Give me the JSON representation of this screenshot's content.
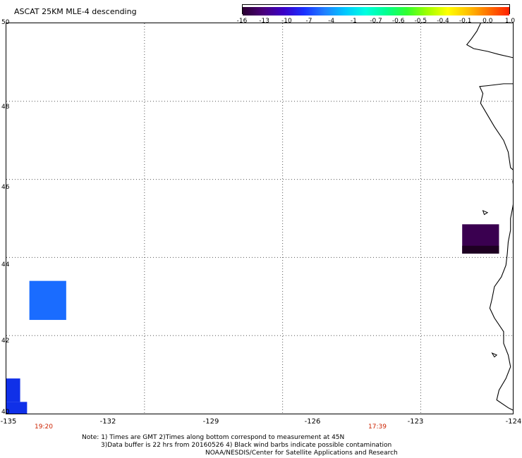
{
  "title": "ASCAT 25KM MLE-4 descending",
  "colorbar": {
    "colors": [
      "#2a0030",
      "#4a007a",
      "#3a00c8",
      "#1a30ff",
      "#2080ff",
      "#00c8ff",
      "#00ffe0",
      "#00ff90",
      "#30ff30",
      "#a0ff00",
      "#ffff00",
      "#ffc000",
      "#ff7000",
      "#ff2000"
    ],
    "labels": [
      "-16",
      "-13",
      "-10",
      "-7",
      "-4",
      "-1",
      "-0.7",
      "-0.6",
      "-0.5",
      "-0.4",
      "-0.1",
      "0.0",
      "1.0"
    ]
  },
  "map": {
    "lon_range": [
      -135,
      -124
    ],
    "lat_range": [
      40,
      50
    ],
    "lat_ticks": [
      "50",
      "48",
      "46",
      "44",
      "42",
      "40"
    ],
    "lon_ticks": [
      "-135",
      "-132",
      "-129",
      "-126",
      "-123",
      "-124"
    ],
    "times": [
      "19:20",
      "17:39"
    ],
    "swath_cells": [
      {
        "lon": [
          -134.5,
          -133.7
        ],
        "lat": [
          42.4,
          43.4
        ],
        "color": "#1a6cff"
      },
      {
        "lon": [
          -135,
          -134.7
        ],
        "lat": [
          40.3,
          40.9
        ],
        "color": "#1030e8"
      },
      {
        "lon": [
          -135,
          -134.55
        ],
        "lat": [
          40.0,
          40.3
        ],
        "color": "#1030e8"
      },
      {
        "lon": [
          -125.1,
          -124.3
        ],
        "lat": [
          44.1,
          44.85
        ],
        "color": "#3a0050"
      }
    ]
  },
  "notes": {
    "line1": "Note: 1) Times are GMT 2)Times along bottom correspond to measurement at 45N",
    "line2": "3)Data buffer is 22 hrs from 20160526 4) Black wind barbs indicate possible contamination",
    "line3": "NOAA/NESDIS/Center for Satellite Applications and Research"
  }
}
